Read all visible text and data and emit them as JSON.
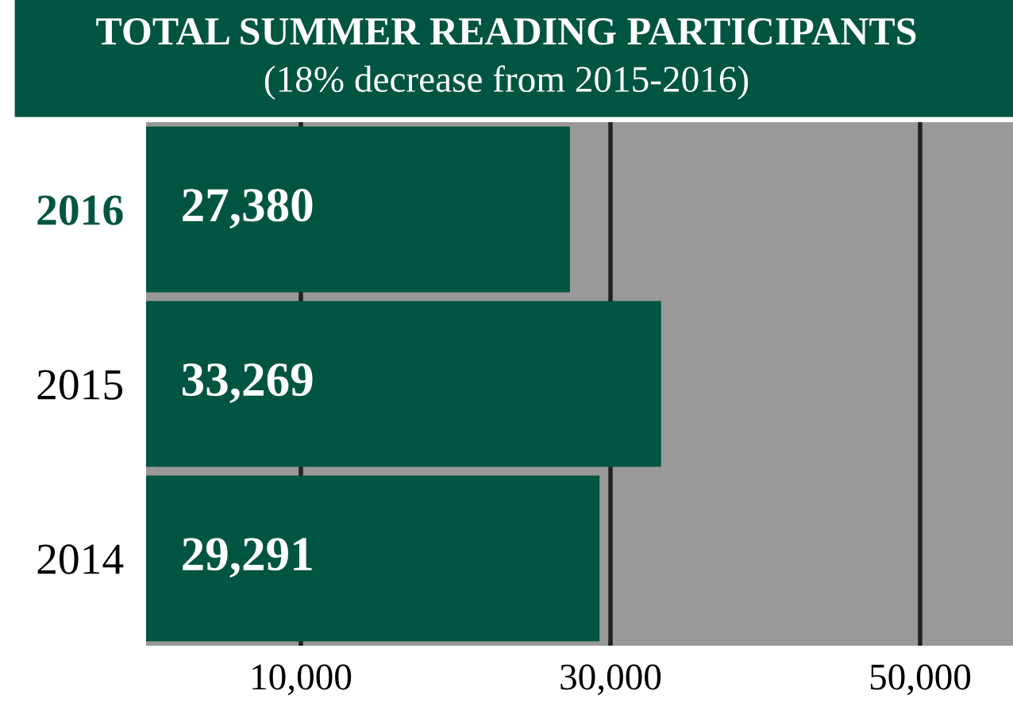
{
  "chart_data": {
    "type": "bar",
    "orientation": "horizontal",
    "title": "TOTAL SUMMER READING PARTICIPANTS",
    "subtitle": "(18% decrease from 2015-2016)",
    "categories": [
      "2016",
      "2015",
      "2014"
    ],
    "values": [
      27380,
      33269,
      29291
    ],
    "color": "#005540",
    "value_labels": [
      "27,380",
      "33,269",
      "29,291"
    ],
    "xlim": [
      0,
      56000
    ],
    "xticks": [
      {
        "value": 10000,
        "label": "10,000"
      },
      {
        "value": 30000,
        "label": "30,000"
      },
      {
        "value": 50000,
        "label": "50,000"
      }
    ],
    "grid": "x"
  }
}
